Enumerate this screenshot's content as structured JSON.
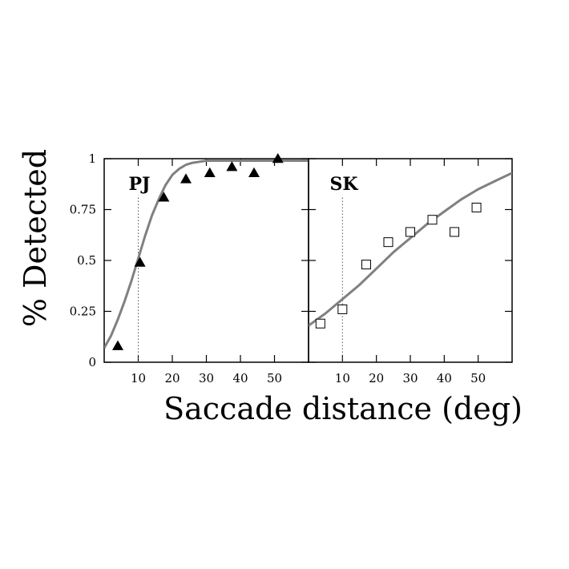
{
  "figure": {
    "ylabel": "% Detected",
    "xlabel": "Saccade distance (deg)"
  },
  "chart_data": [
    {
      "type": "scatter",
      "panel_label": "PJ",
      "marker": "filled-triangle",
      "xlim": [
        0,
        60
      ],
      "ylim": [
        0,
        1
      ],
      "x_ticks": [
        "10",
        "20",
        "30",
        "40",
        "50"
      ],
      "y_ticks": [
        "0",
        "0.25",
        "0.5",
        "0.75",
        "1"
      ],
      "reference_line_x": 10,
      "points": [
        {
          "x": 4,
          "y": 0.08
        },
        {
          "x": 10.5,
          "y": 0.49
        },
        {
          "x": 17.5,
          "y": 0.81
        },
        {
          "x": 24,
          "y": 0.9
        },
        {
          "x": 31,
          "y": 0.93
        },
        {
          "x": 37.5,
          "y": 0.96
        },
        {
          "x": 44,
          "y": 0.93
        },
        {
          "x": 51,
          "y": 1.0
        }
      ],
      "fit_curve": [
        {
          "x": 0,
          "y": 0.07
        },
        {
          "x": 2,
          "y": 0.13
        },
        {
          "x": 4,
          "y": 0.21
        },
        {
          "x": 6,
          "y": 0.3
        },
        {
          "x": 8,
          "y": 0.4
        },
        {
          "x": 10,
          "y": 0.51
        },
        {
          "x": 12,
          "y": 0.62
        },
        {
          "x": 14,
          "y": 0.72
        },
        {
          "x": 16,
          "y": 0.8
        },
        {
          "x": 18,
          "y": 0.87
        },
        {
          "x": 20,
          "y": 0.92
        },
        {
          "x": 22,
          "y": 0.95
        },
        {
          "x": 24,
          "y": 0.97
        },
        {
          "x": 26,
          "y": 0.98
        },
        {
          "x": 30,
          "y": 0.99
        },
        {
          "x": 35,
          "y": 0.99
        },
        {
          "x": 45,
          "y": 0.99
        },
        {
          "x": 60,
          "y": 0.99
        }
      ],
      "fit_color": "#808080"
    },
    {
      "type": "scatter",
      "panel_label": "SK",
      "marker": "open-square",
      "xlim": [
        0,
        60
      ],
      "ylim": [
        0,
        1
      ],
      "x_ticks": [
        "10",
        "20",
        "30",
        "40",
        "50"
      ],
      "reference_line_x": 10,
      "points": [
        {
          "x": 3.5,
          "y": 0.19
        },
        {
          "x": 10,
          "y": 0.26
        },
        {
          "x": 17,
          "y": 0.48
        },
        {
          "x": 23.5,
          "y": 0.59
        },
        {
          "x": 30,
          "y": 0.64
        },
        {
          "x": 36.5,
          "y": 0.7
        },
        {
          "x": 43,
          "y": 0.64
        },
        {
          "x": 49.5,
          "y": 0.76
        }
      ],
      "fit_curve": [
        {
          "x": 0,
          "y": 0.18
        },
        {
          "x": 5,
          "y": 0.24
        },
        {
          "x": 10,
          "y": 0.31
        },
        {
          "x": 15,
          "y": 0.38
        },
        {
          "x": 20,
          "y": 0.46
        },
        {
          "x": 25,
          "y": 0.54
        },
        {
          "x": 30,
          "y": 0.61
        },
        {
          "x": 35,
          "y": 0.68
        },
        {
          "x": 40,
          "y": 0.74
        },
        {
          "x": 45,
          "y": 0.8
        },
        {
          "x": 50,
          "y": 0.85
        },
        {
          "x": 55,
          "y": 0.89
        },
        {
          "x": 60,
          "y": 0.93
        }
      ],
      "fit_color": "#808080"
    }
  ]
}
